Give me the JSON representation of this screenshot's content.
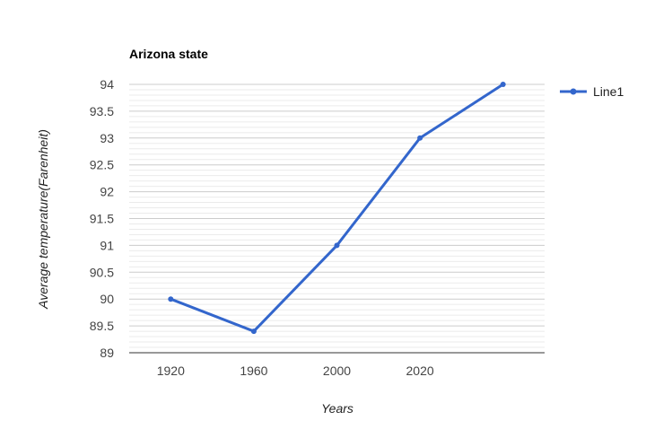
{
  "chart_data": {
    "type": "line",
    "title": "Arizona state",
    "xlabel": "Years",
    "ylabel": "Average temperature(Farenheit)",
    "categories": [
      "1920",
      "1960",
      "2000",
      "2020",
      ""
    ],
    "series": [
      {
        "name": "Line1",
        "values": [
          90,
          89.4,
          91,
          93,
          94
        ],
        "color": "#3366cc"
      }
    ],
    "ylim": [
      89,
      94
    ],
    "yticks": [
      "89",
      "89.5",
      "90",
      "90.5",
      "91",
      "91.5",
      "92",
      "92.5",
      "93",
      "93.5",
      "94"
    ],
    "grid": true,
    "legend_position": "right"
  }
}
